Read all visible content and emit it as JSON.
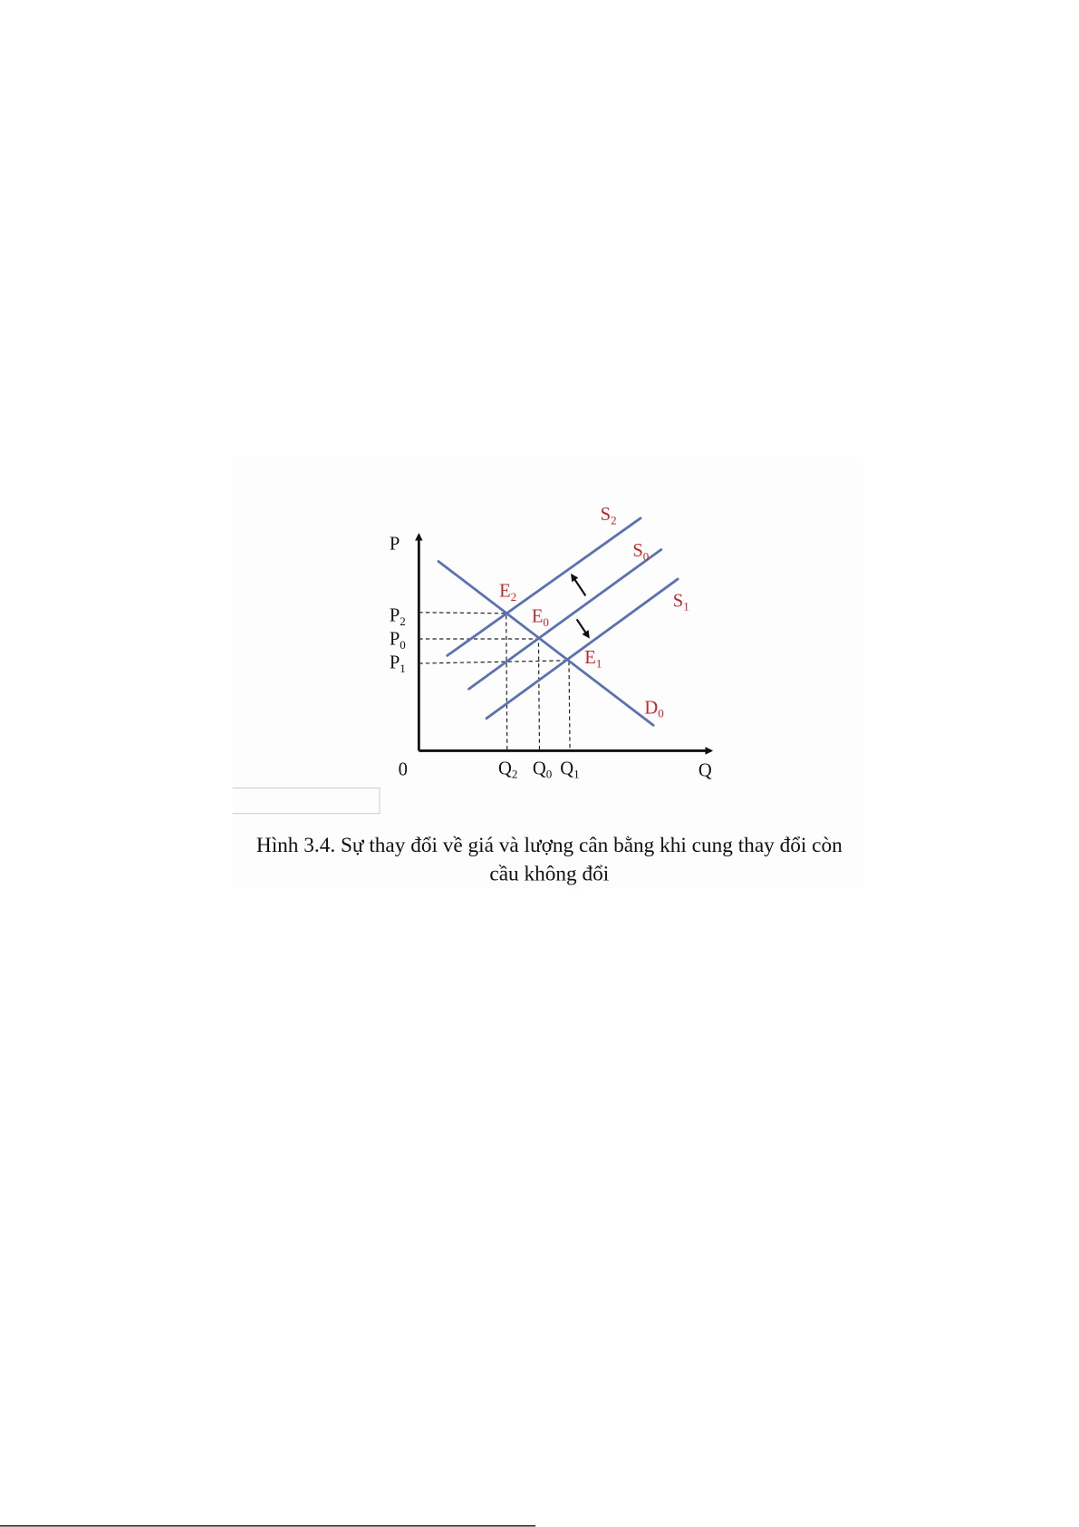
{
  "figure": {
    "axes": {
      "y_label": "P",
      "x_label": "Q",
      "origin": "0"
    },
    "price_ticks": [
      {
        "base": "P",
        "sub": "2"
      },
      {
        "base": "P",
        "sub": "0"
      },
      {
        "base": "P",
        "sub": "1"
      }
    ],
    "quantity_ticks": [
      {
        "base": "Q",
        "sub": "2"
      },
      {
        "base": "Q",
        "sub": "0"
      },
      {
        "base": "Q",
        "sub": "1"
      }
    ],
    "curves": {
      "S2": {
        "base": "S",
        "sub": "2"
      },
      "S0": {
        "base": "S",
        "sub": "0"
      },
      "S1": {
        "base": "S",
        "sub": "1"
      },
      "D0": {
        "base": "D",
        "sub": "0"
      }
    },
    "equilibria": {
      "E2": {
        "base": "E",
        "sub": "2"
      },
      "E0": {
        "base": "E",
        "sub": "0"
      },
      "E1": {
        "base": "E",
        "sub": "1"
      }
    },
    "colors": {
      "curve": "#5a73b0",
      "label": "#c0282d",
      "axis": "#111111"
    }
  },
  "caption": {
    "line1": "Hình 3.4. Sự thay đổi về giá và lượng cân bằng khi cung thay đổi còn",
    "line2": "cầu không đổi"
  }
}
